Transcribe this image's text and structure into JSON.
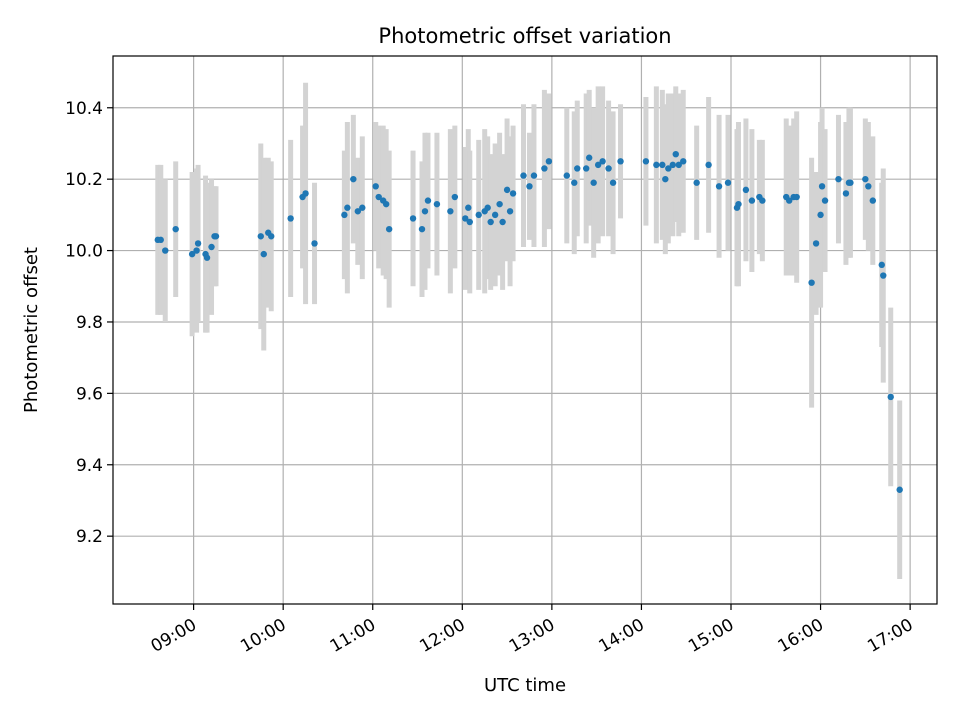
{
  "chart_data": {
    "type": "scatter",
    "title": "Photometric offset variation",
    "xlabel": "UTC time",
    "ylabel": "Photometric offset",
    "x_ticks": [
      "09:00",
      "10:00",
      "11:00",
      "12:00",
      "13:00",
      "14:00",
      "15:00",
      "16:00",
      "17:00"
    ],
    "y_ticks": [
      "9.2",
      "9.4",
      "9.6",
      "9.8",
      "10.0",
      "10.2",
      "10.4"
    ],
    "xlim": [
      "08:06",
      "17:18"
    ],
    "ylim": [
      9.01,
      10.545
    ],
    "grid": true,
    "colors": {
      "point": "#1f77b4",
      "errorbar": "#d3d3d3",
      "grid": "#b0b0b0"
    },
    "series": [
      {
        "points": [
          {
            "x": "08:36",
            "y": 10.03,
            "yerr": 0.21
          },
          {
            "x": "08:38",
            "y": 10.03,
            "yerr": 0.21
          },
          {
            "x": "08:41",
            "y": 10.0,
            "yerr": 0.2
          },
          {
            "x": "08:48",
            "y": 10.06,
            "yerr": 0.19
          },
          {
            "x": "08:59",
            "y": 9.99,
            "yerr": 0.23
          },
          {
            "x": "09:02",
            "y": 10.0,
            "yerr": 0.23
          },
          {
            "x": "09:03",
            "y": 10.02,
            "yerr": 0.22
          },
          {
            "x": "09:08",
            "y": 9.99,
            "yerr": 0.22
          },
          {
            "x": "09:09",
            "y": 9.98,
            "yerr": 0.21
          },
          {
            "x": "09:12",
            "y": 10.01,
            "yerr": 0.19
          },
          {
            "x": "09:14",
            "y": 10.04,
            "yerr": 0.14
          },
          {
            "x": "09:15",
            "y": 10.04,
            "yerr": 0.14
          },
          {
            "x": "09:45",
            "y": 10.04,
            "yerr": 0.26
          },
          {
            "x": "09:47",
            "y": 9.99,
            "yerr": 0.27
          },
          {
            "x": "09:50",
            "y": 10.05,
            "yerr": 0.21
          },
          {
            "x": "09:52",
            "y": 10.04,
            "yerr": 0.21
          },
          {
            "x": "10:05",
            "y": 10.09,
            "yerr": 0.22
          },
          {
            "x": "10:13",
            "y": 10.15,
            "yerr": 0.2
          },
          {
            "x": "10:15",
            "y": 10.16,
            "yerr": 0.31
          },
          {
            "x": "10:21",
            "y": 10.02,
            "yerr": 0.17
          },
          {
            "x": "10:41",
            "y": 10.1,
            "yerr": 0.18
          },
          {
            "x": "10:43",
            "y": 10.12,
            "yerr": 0.24
          },
          {
            "x": "10:47",
            "y": 10.2,
            "yerr": 0.18
          },
          {
            "x": "10:50",
            "y": 10.11,
            "yerr": 0.15
          },
          {
            "x": "10:53",
            "y": 10.12,
            "yerr": 0.2
          },
          {
            "x": "11:02",
            "y": 10.18,
            "yerr": 0.18
          },
          {
            "x": "11:04",
            "y": 10.15,
            "yerr": 0.2
          },
          {
            "x": "11:07",
            "y": 10.14,
            "yerr": 0.21
          },
          {
            "x": "11:09",
            "y": 10.13,
            "yerr": 0.21
          },
          {
            "x": "11:11",
            "y": 10.06,
            "yerr": 0.22
          },
          {
            "x": "11:27",
            "y": 10.09,
            "yerr": 0.19
          },
          {
            "x": "11:33",
            "y": 10.06,
            "yerr": 0.19
          },
          {
            "x": "11:35",
            "y": 10.11,
            "yerr": 0.22
          },
          {
            "x": "11:37",
            "y": 10.14,
            "yerr": 0.19
          },
          {
            "x": "11:43",
            "y": 10.13,
            "yerr": 0.2
          },
          {
            "x": "11:52",
            "y": 10.11,
            "yerr": 0.23
          },
          {
            "x": "11:55",
            "y": 10.15,
            "yerr": 0.2
          },
          {
            "x": "12:02",
            "y": 10.09,
            "yerr": 0.2
          },
          {
            "x": "12:04",
            "y": 10.12,
            "yerr": 0.22
          },
          {
            "x": "12:05",
            "y": 10.08,
            "yerr": 0.2
          },
          {
            "x": "12:11",
            "y": 10.1,
            "yerr": 0.21
          },
          {
            "x": "12:15",
            "y": 10.11,
            "yerr": 0.23
          },
          {
            "x": "12:17",
            "y": 10.12,
            "yerr": 0.2
          },
          {
            "x": "12:19",
            "y": 10.08,
            "yerr": 0.19
          },
          {
            "x": "12:22",
            "y": 10.1,
            "yerr": 0.2
          },
          {
            "x": "12:25",
            "y": 10.13,
            "yerr": 0.2
          },
          {
            "x": "12:27",
            "y": 10.08,
            "yerr": 0.19
          },
          {
            "x": "12:30",
            "y": 10.17,
            "yerr": 0.2
          },
          {
            "x": "12:32",
            "y": 10.11,
            "yerr": 0.21
          },
          {
            "x": "12:34",
            "y": 10.16,
            "yerr": 0.19
          },
          {
            "x": "12:41",
            "y": 10.21,
            "yerr": 0.2
          },
          {
            "x": "12:45",
            "y": 10.18,
            "yerr": 0.15
          },
          {
            "x": "12:48",
            "y": 10.21,
            "yerr": 0.2
          },
          {
            "x": "12:55",
            "y": 10.23,
            "yerr": 0.22
          },
          {
            "x": "12:58",
            "y": 10.25,
            "yerr": 0.19
          },
          {
            "x": "13:10",
            "y": 10.21,
            "yerr": 0.19
          },
          {
            "x": "13:15",
            "y": 10.19,
            "yerr": 0.2
          },
          {
            "x": "13:17",
            "y": 10.23,
            "yerr": 0.19
          },
          {
            "x": "13:23",
            "y": 10.23,
            "yerr": 0.21
          },
          {
            "x": "13:25",
            "y": 10.26,
            "yerr": 0.19
          },
          {
            "x": "13:28",
            "y": 10.19,
            "yerr": 0.21
          },
          {
            "x": "13:31",
            "y": 10.24,
            "yerr": 0.22
          },
          {
            "x": "13:34",
            "y": 10.25,
            "yerr": 0.21
          },
          {
            "x": "13:38",
            "y": 10.23,
            "yerr": 0.19
          },
          {
            "x": "13:41",
            "y": 10.19,
            "yerr": 0.2
          },
          {
            "x": "13:46",
            "y": 10.25,
            "yerr": 0.16
          },
          {
            "x": "14:03",
            "y": 10.25,
            "yerr": 0.18
          },
          {
            "x": "14:10",
            "y": 10.24,
            "yerr": 0.22
          },
          {
            "x": "14:14",
            "y": 10.24,
            "yerr": 0.21
          },
          {
            "x": "14:16",
            "y": 10.2,
            "yerr": 0.21
          },
          {
            "x": "14:18",
            "y": 10.23,
            "yerr": 0.21
          },
          {
            "x": "14:21",
            "y": 10.24,
            "yerr": 0.2
          },
          {
            "x": "14:23",
            "y": 10.27,
            "yerr": 0.19
          },
          {
            "x": "14:25",
            "y": 10.24,
            "yerr": 0.2
          },
          {
            "x": "14:28",
            "y": 10.25,
            "yerr": 0.2
          },
          {
            "x": "14:37",
            "y": 10.19,
            "yerr": 0.16
          },
          {
            "x": "14:45",
            "y": 10.24,
            "yerr": 0.19
          },
          {
            "x": "14:52",
            "y": 10.18,
            "yerr": 0.2
          },
          {
            "x": "14:58",
            "y": 10.19,
            "yerr": 0.19
          },
          {
            "x": "15:04",
            "y": 10.12,
            "yerr": 0.22
          },
          {
            "x": "15:05",
            "y": 10.13,
            "yerr": 0.23
          },
          {
            "x": "15:10",
            "y": 10.17,
            "yerr": 0.2
          },
          {
            "x": "15:14",
            "y": 10.14,
            "yerr": 0.2
          },
          {
            "x": "15:19",
            "y": 10.15,
            "yerr": 0.16
          },
          {
            "x": "15:21",
            "y": 10.14,
            "yerr": 0.17
          },
          {
            "x": "15:37",
            "y": 10.15,
            "yerr": 0.22
          },
          {
            "x": "15:39",
            "y": 10.14,
            "yerr": 0.21
          },
          {
            "x": "15:42",
            "y": 10.15,
            "yerr": 0.22
          },
          {
            "x": "15:44",
            "y": 10.15,
            "yerr": 0.24
          },
          {
            "x": "15:54",
            "y": 9.91,
            "yerr": 0.35
          },
          {
            "x": "15:57",
            "y": 10.02,
            "yerr": 0.2
          },
          {
            "x": "16:00",
            "y": 10.1,
            "yerr": 0.26
          },
          {
            "x": "16:01",
            "y": 10.18,
            "yerr": 0.22
          },
          {
            "x": "16:03",
            "y": 10.14,
            "yerr": 0.2
          },
          {
            "x": "16:12",
            "y": 10.2,
            "yerr": 0.18
          },
          {
            "x": "16:17",
            "y": 10.16,
            "yerr": 0.2
          },
          {
            "x": "16:19",
            "y": 10.19,
            "yerr": 0.21
          },
          {
            "x": "16:20",
            "y": 10.19,
            "yerr": 0.21
          },
          {
            "x": "16:30",
            "y": 10.2,
            "yerr": 0.17
          },
          {
            "x": "16:32",
            "y": 10.18,
            "yerr": 0.18
          },
          {
            "x": "16:35",
            "y": 10.14,
            "yerr": 0.18
          },
          {
            "x": "16:41",
            "y": 9.96,
            "yerr": 0.23
          },
          {
            "x": "16:42",
            "y": 9.93,
            "yerr": 0.3
          },
          {
            "x": "16:47",
            "y": 9.59,
            "yerr": 0.25
          },
          {
            "x": "16:53",
            "y": 9.33,
            "yerr": 0.25
          }
        ]
      }
    ]
  }
}
